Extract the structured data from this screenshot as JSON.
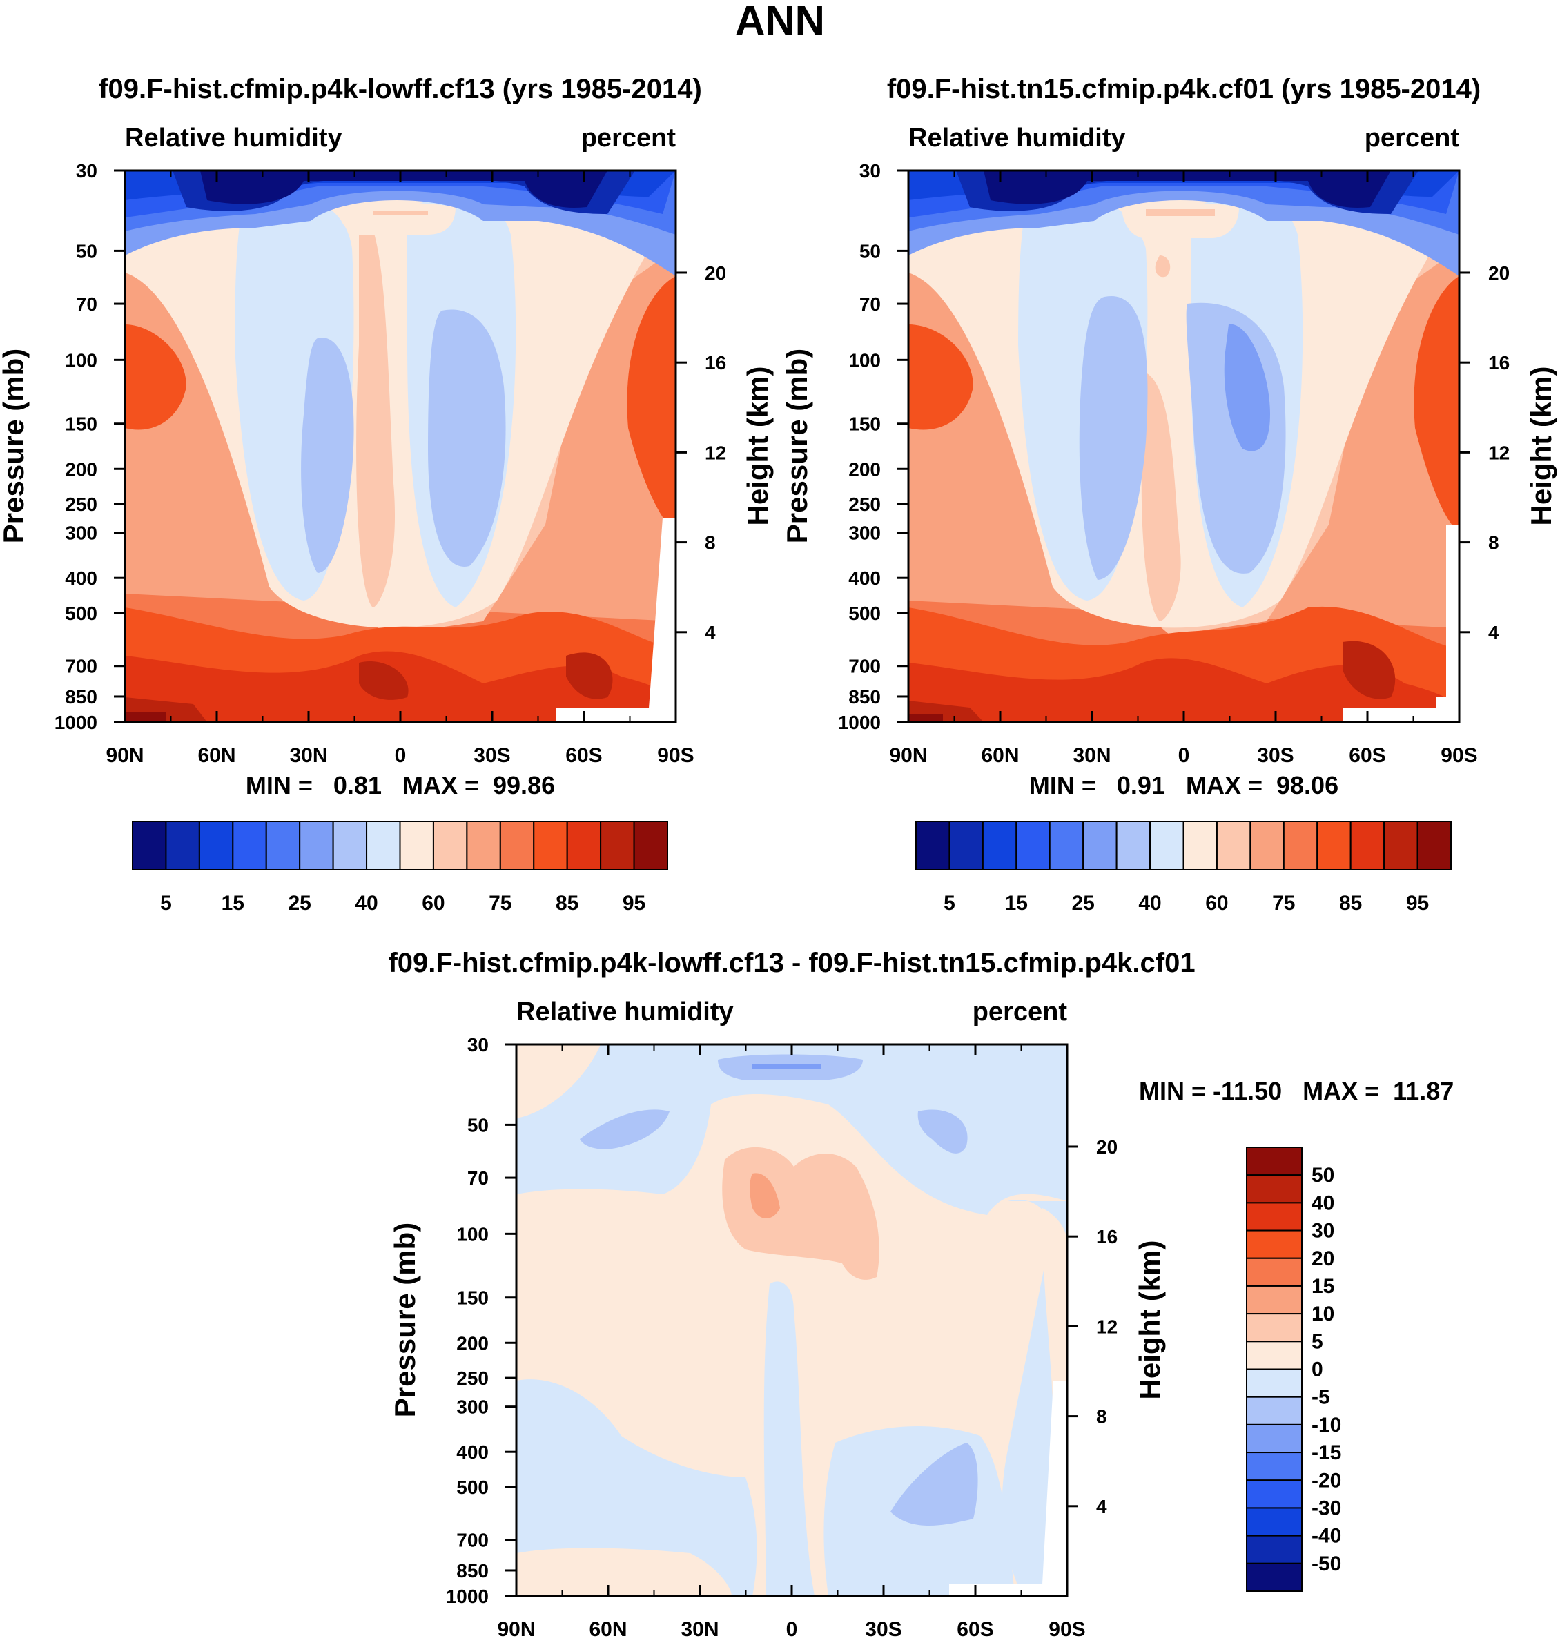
{
  "figure_title": "ANN",
  "palettes": {
    "absolute": [
      "#080d7b",
      "#0d2bb0",
      "#1144de",
      "#2b5bf2",
      "#4c78f5",
      "#7d9ef6",
      "#adc4f8",
      "#d6e7fb",
      "#fdeadb",
      "#fcc8af",
      "#f9a27f",
      "#f6784d",
      "#f4521e",
      "#e23513",
      "#bb230d",
      "#8e0d09"
    ],
    "difference": [
      "#080d7b",
      "#0d2bb0",
      "#1144de",
      "#2b5bf2",
      "#4c78f5",
      "#7d9ef6",
      "#adc4f8",
      "#d6e7fb",
      "#fdeadb",
      "#fcc8af",
      "#f9a27f",
      "#f6784d",
      "#f4521e",
      "#e23513",
      "#bb230d",
      "#8e0d09"
    ]
  },
  "chart_data": [
    {
      "type": "heatmap",
      "title": "f09.F-hist.cfmip.p4k-lowff.cf13 (yrs 1985-2014)",
      "left_label": "Relative humidity",
      "right_label": "percent",
      "ylabel": "Pressure (mb)",
      "y2label": "Height (km)",
      "x_ticks": [
        "90N",
        "60N",
        "30N",
        "0",
        "30S",
        "60S",
        "90S"
      ],
      "y_ticks": [
        "30",
        "50",
        "70",
        "100",
        "150",
        "200",
        "250",
        "300",
        "400",
        "500",
        "700",
        "850",
        "1000"
      ],
      "y2_ticks": [
        "20",
        "16",
        "12",
        "8",
        "4"
      ],
      "stats": "MIN =   0.81   MAX =  99.86",
      "colorbar_labels": [
        "5",
        "15",
        "25",
        "40",
        "60",
        "75",
        "85",
        "95"
      ],
      "x_range": [
        90,
        -90
      ],
      "y_range": [
        30,
        1000
      ],
      "y_scale": "log"
    },
    {
      "type": "heatmap",
      "title": "f09.F-hist.tn15.cfmip.p4k.cf01 (yrs 1985-2014)",
      "left_label": "Relative humidity",
      "right_label": "percent",
      "ylabel": "Pressure (mb)",
      "y2label": "Height (km)",
      "x_ticks": [
        "90N",
        "60N",
        "30N",
        "0",
        "30S",
        "60S",
        "90S"
      ],
      "y_ticks": [
        "30",
        "50",
        "70",
        "100",
        "150",
        "200",
        "250",
        "300",
        "400",
        "500",
        "700",
        "850",
        "1000"
      ],
      "y2_ticks": [
        "20",
        "16",
        "12",
        "8",
        "4"
      ],
      "stats": "MIN =   0.91   MAX =  98.06",
      "colorbar_labels": [
        "5",
        "15",
        "25",
        "40",
        "60",
        "75",
        "85",
        "95"
      ],
      "x_range": [
        90,
        -90
      ],
      "y_range": [
        30,
        1000
      ],
      "y_scale": "log"
    },
    {
      "type": "heatmap",
      "title": "f09.F-hist.cfmip.p4k-lowff.cf13 - f09.F-hist.tn15.cfmip.p4k.cf01",
      "left_label": "Relative humidity",
      "right_label": "percent",
      "ylabel": "Pressure (mb)",
      "y2label": "Height (km)",
      "x_ticks": [
        "90N",
        "60N",
        "30N",
        "0",
        "30S",
        "60S",
        "90S"
      ],
      "y_ticks": [
        "30",
        "50",
        "70",
        "100",
        "150",
        "200",
        "250",
        "300",
        "400",
        "500",
        "700",
        "850",
        "1000"
      ],
      "y2_ticks": [
        "20",
        "16",
        "12",
        "8",
        "4"
      ],
      "stats": "MIN = -11.50   MAX =  11.87",
      "colorbar_labels": [
        "50",
        "40",
        "30",
        "20",
        "15",
        "10",
        "5",
        "0",
        "-5",
        "-10",
        "-15",
        "-20",
        "-30",
        "-40",
        "-50"
      ],
      "x_range": [
        90,
        -90
      ],
      "y_range": [
        30,
        1000
      ],
      "y_scale": "log"
    }
  ]
}
